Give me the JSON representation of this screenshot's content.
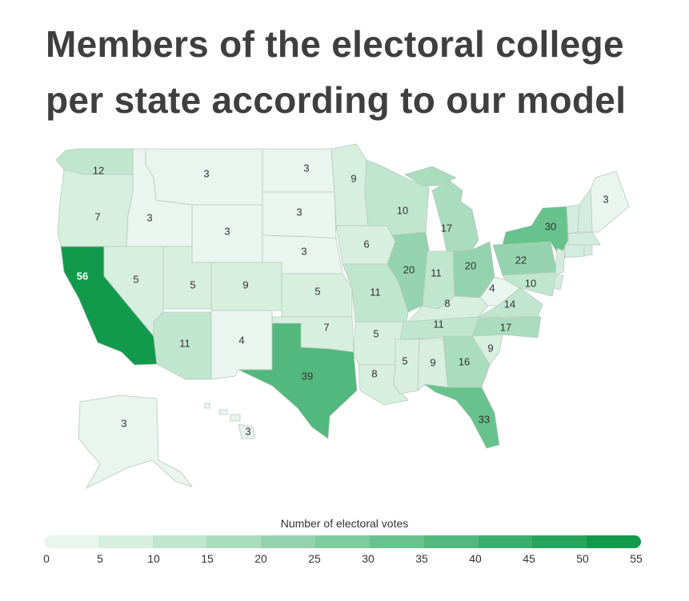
{
  "title": "Members of the electoral college per state according to our model",
  "legend": {
    "title": "Number of electoral votes",
    "ticks": [
      "0",
      "5",
      "10",
      "15",
      "20",
      "25",
      "30",
      "35",
      "40",
      "45",
      "50",
      "55"
    ],
    "colors": [
      "#e9f5ee",
      "#d6efdf",
      "#c0e6cf",
      "#aadcbe",
      "#95d3ae",
      "#7ecb9e",
      "#67c28d",
      "#52b87d",
      "#3cae6c",
      "#27a45c",
      "#129a4c"
    ]
  },
  "states": [
    {
      "id": "WA",
      "votes": 12
    },
    {
      "id": "OR",
      "votes": 7
    },
    {
      "id": "CA",
      "votes": 56
    },
    {
      "id": "ID",
      "votes": 3
    },
    {
      "id": "NV",
      "votes": 5
    },
    {
      "id": "MT",
      "votes": 3
    },
    {
      "id": "WY",
      "votes": 3
    },
    {
      "id": "UT",
      "votes": 5
    },
    {
      "id": "AZ",
      "votes": 11
    },
    {
      "id": "CO",
      "votes": 9
    },
    {
      "id": "NM",
      "votes": 4
    },
    {
      "id": "ND",
      "votes": 3
    },
    {
      "id": "SD",
      "votes": 3
    },
    {
      "id": "NE",
      "votes": 3
    },
    {
      "id": "KS",
      "votes": 5
    },
    {
      "id": "OK",
      "votes": 7
    },
    {
      "id": "TX",
      "votes": 39
    },
    {
      "id": "MN",
      "votes": 9
    },
    {
      "id": "IA",
      "votes": 6
    },
    {
      "id": "MO",
      "votes": 11
    },
    {
      "id": "AR",
      "votes": 5
    },
    {
      "id": "LA",
      "votes": 8
    },
    {
      "id": "WI",
      "votes": 10
    },
    {
      "id": "IL",
      "votes": 20
    },
    {
      "id": "MI",
      "votes": 17
    },
    {
      "id": "IN",
      "votes": 11
    },
    {
      "id": "OH",
      "votes": 20
    },
    {
      "id": "KY",
      "votes": 8
    },
    {
      "id": "TN",
      "votes": 11
    },
    {
      "id": "MS",
      "votes": 5
    },
    {
      "id": "AL",
      "votes": 9
    },
    {
      "id": "GA",
      "votes": 16
    },
    {
      "id": "FL",
      "votes": 33
    },
    {
      "id": "SC",
      "votes": 9
    },
    {
      "id": "NC",
      "votes": 17
    },
    {
      "id": "VA",
      "votes": 14
    },
    {
      "id": "WV",
      "votes": 4
    },
    {
      "id": "PA",
      "votes": 22
    },
    {
      "id": "NY",
      "votes": 30
    },
    {
      "id": "MD",
      "votes": 10
    },
    {
      "id": "ME",
      "votes": 3
    },
    {
      "id": "AK",
      "votes": 3
    },
    {
      "id": "HI",
      "votes": 3
    },
    {
      "id": "NJ",
      "votes": null
    },
    {
      "id": "VT",
      "votes": null
    },
    {
      "id": "NH",
      "votes": null
    },
    {
      "id": "MA",
      "votes": null
    },
    {
      "id": "CT",
      "votes": null
    },
    {
      "id": "RI",
      "votes": null
    },
    {
      "id": "DE",
      "votes": null
    }
  ]
}
